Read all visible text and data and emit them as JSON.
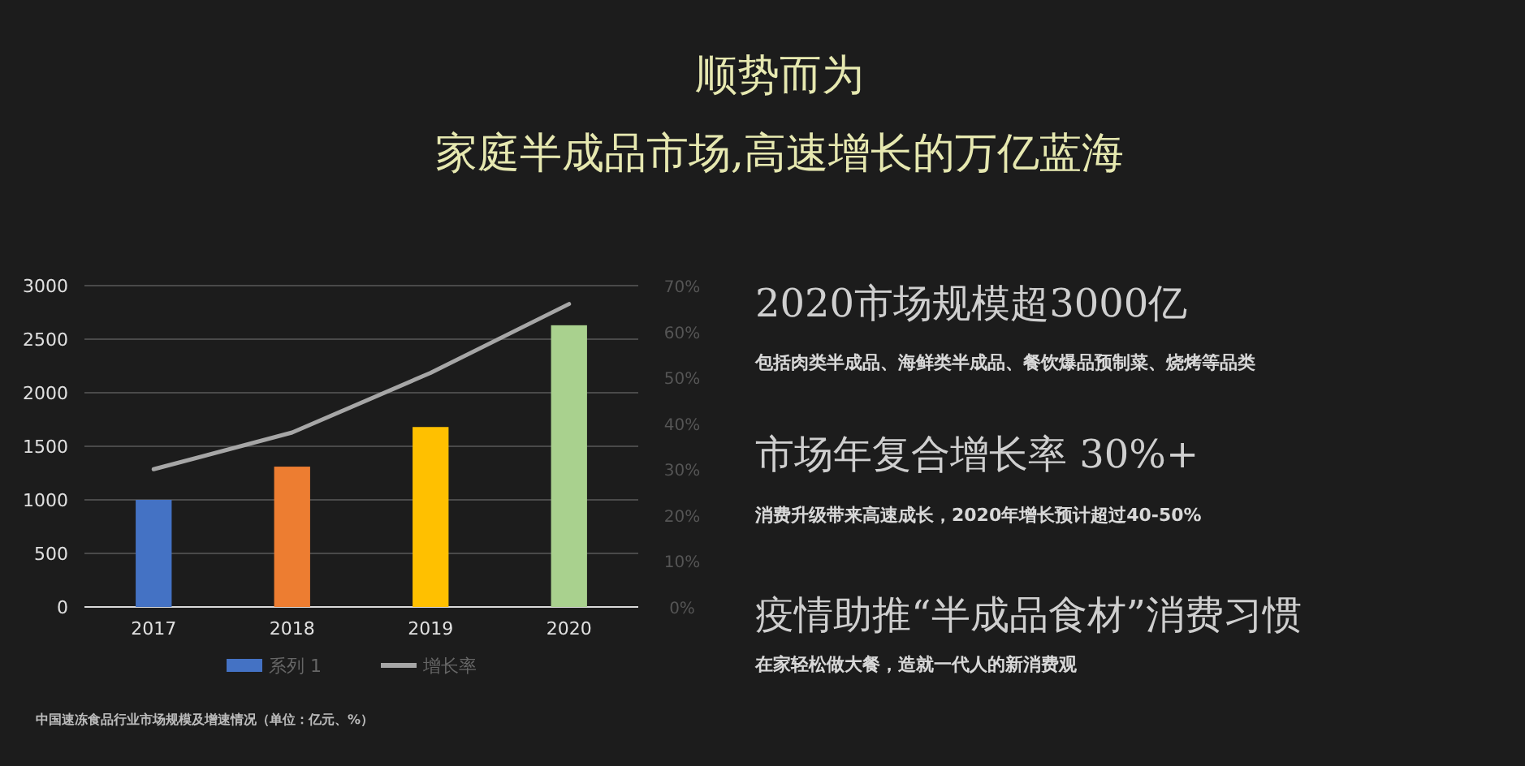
{
  "chart_data": {
    "type": "bar",
    "title": "顺势而为",
    "subtitle": "家庭半成品市场,高速增长的万亿蓝海",
    "categories": [
      "2017",
      "2018",
      "2019",
      "2020"
    ],
    "series": [
      {
        "name": "系列 1",
        "colors": [
          "#4472c4",
          "#ed7d31",
          "#ffc000",
          "#a9d18e"
        ],
        "values": [
          1000,
          1310,
          1680,
          2630
        ]
      },
      {
        "name": "增长率",
        "type": "line",
        "axis": "y2",
        "color": "#a6a6a6",
        "values": [
          30,
          38,
          51,
          66
        ]
      }
    ],
    "ylim": [
      0,
      3000
    ],
    "yticks": [
      0,
      500,
      1000,
      1500,
      2000,
      2500,
      3000
    ],
    "y2lim": [
      0,
      70
    ],
    "y2ticks": [
      {
        "value": 0,
        "label": "0%"
      },
      {
        "value": 10,
        "label": "10%"
      },
      {
        "value": 20,
        "label": "20%"
      },
      {
        "value": 30,
        "label": "30%"
      },
      {
        "value": 40,
        "label": "40%"
      },
      {
        "value": 50,
        "label": "50%"
      },
      {
        "value": 60,
        "label": "60%"
      },
      {
        "value": 70,
        "label": "70%"
      }
    ],
    "grid": "y",
    "legend": "bottom",
    "annotations": [
      "2020市场规模超3000亿",
      "包括肉类半成品、海鲜类半成品、餐饮爆品预制菜、烧烤等品类",
      "市场年复合增长率 30%+",
      "消费升级带来高速成长，2020年增长预计超过40-50%",
      "疫情助推“半成品食材”消费习惯",
      "在家轻松做大餐，造就一代人的新消费观",
      "中国速冻食品行业市场规模及增速情况（单位：亿元、%）"
    ]
  }
}
